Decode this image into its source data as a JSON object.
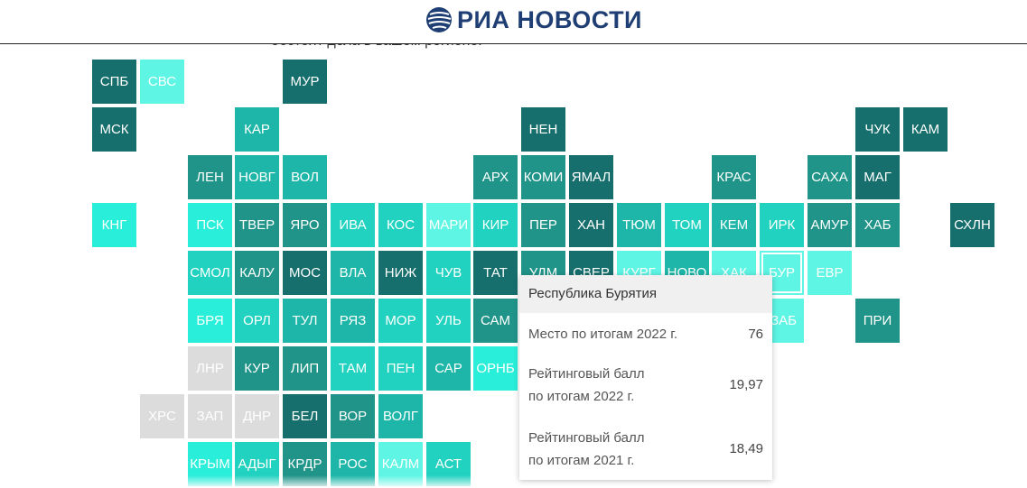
{
  "header": {
    "logo_text": "РИА НОВОСТИ"
  },
  "intro_text": "обстоят дела в вашем регионе.",
  "palette": {
    "c1": "#176f6d",
    "c2": "#209489",
    "c3": "#1db6a8",
    "c4": "#22d2c0",
    "c5": "#29eed9",
    "c6": "#5ef5e5",
    "none": "#dcdcdc"
  },
  "tiles": [
    {
      "label": "СПБ",
      "color": "#176f6d"
    },
    {
      "label": "СВС",
      "color": "#5ef5e5"
    },
    {
      "label": "МУР",
      "color": "#176f6d"
    },
    {
      "label": "МСК",
      "color": "#176f6d"
    },
    {
      "label": "КАР",
      "color": "#1db6a8"
    },
    {
      "label": "НЕН",
      "color": "#176f6d"
    },
    {
      "label": "ЧУК",
      "color": "#176f6d"
    },
    {
      "label": "КАМ",
      "color": "#176f6d"
    },
    {
      "label": "ЛЕН",
      "color": "#209489"
    },
    {
      "label": "НОВГ",
      "color": "#1db6a8"
    },
    {
      "label": "ВОЛ",
      "color": "#1db6a8"
    },
    {
      "label": "АРХ",
      "color": "#209489"
    },
    {
      "label": "КОМИ",
      "color": "#209489"
    },
    {
      "label": "ЯМАЛ",
      "color": "#176f6d"
    },
    {
      "label": "КРАС",
      "color": "#209489"
    },
    {
      "label": "САХА",
      "color": "#209489"
    },
    {
      "label": "МАГ",
      "color": "#176f6d"
    },
    {
      "label": "КНГ",
      "color": "#29eed9"
    },
    {
      "label": "ПСК",
      "color": "#29eed9"
    },
    {
      "label": "ТВЕР",
      "color": "#209489"
    },
    {
      "label": "ЯРО",
      "color": "#209489"
    },
    {
      "label": "ИВА",
      "color": "#22d2c0"
    },
    {
      "label": "КОС",
      "color": "#22d2c0"
    },
    {
      "label": "МАРИ",
      "color": "#5ef5e5"
    },
    {
      "label": "КИР",
      "color": "#22d2c0"
    },
    {
      "label": "ПЕР",
      "color": "#209489"
    },
    {
      "label": "ХАН",
      "color": "#176f6d"
    },
    {
      "label": "ТЮМ",
      "color": "#1db6a8"
    },
    {
      "label": "ТОМ",
      "color": "#22d2c0"
    },
    {
      "label": "КЕМ",
      "color": "#1db6a8"
    },
    {
      "label": "ИРК",
      "color": "#22d2c0"
    },
    {
      "label": "АМУР",
      "color": "#209489"
    },
    {
      "label": "ХАБ",
      "color": "#209489"
    },
    {
      "label": "СХЛН",
      "color": "#176f6d"
    },
    {
      "label": "СМОЛ",
      "color": "#22d2c0"
    },
    {
      "label": "КАЛУ",
      "color": "#209489"
    },
    {
      "label": "МОС",
      "color": "#176f6d"
    },
    {
      "label": "ВЛА",
      "color": "#1db6a8"
    },
    {
      "label": "НИЖ",
      "color": "#176f6d"
    },
    {
      "label": "ЧУВ",
      "color": "#22d2c0"
    },
    {
      "label": "ТАТ",
      "color": "#176f6d"
    },
    {
      "label": "УДМ",
      "color": "#209489"
    },
    {
      "label": "СВЕР",
      "color": "#176f6d"
    },
    {
      "label": "КУРГ",
      "color": "#5ef5e5"
    },
    {
      "label": "НОВО",
      "color": "#1db6a8"
    },
    {
      "label": "ХАК",
      "color": "#5ef5e5"
    },
    {
      "label": "БУР",
      "color": "#5ef5e5",
      "active": true
    },
    {
      "label": "ЕВР",
      "color": "#5ef5e5"
    },
    {
      "label": "БРЯ",
      "color": "#29eed9"
    },
    {
      "label": "ОРЛ",
      "color": "#22d2c0"
    },
    {
      "label": "ТУЛ",
      "color": "#1db6a8"
    },
    {
      "label": "РЯЗ",
      "color": "#1db6a8"
    },
    {
      "label": "МОР",
      "color": "#22d2c0"
    },
    {
      "label": "УЛЬ",
      "color": "#22d2c0"
    },
    {
      "label": "САМ",
      "color": "#209489"
    },
    {
      "label": "ЗАБ",
      "color": "#5ef5e5"
    },
    {
      "label": "ПРИ",
      "color": "#209489"
    },
    {
      "label": "ЛНР",
      "color": "#dcdcdc"
    },
    {
      "label": "КУР",
      "color": "#209489"
    },
    {
      "label": "ЛИП",
      "color": "#209489"
    },
    {
      "label": "ТАМ",
      "color": "#22d2c0"
    },
    {
      "label": "ПЕН",
      "color": "#22d2c0"
    },
    {
      "label": "САР",
      "color": "#1db6a8"
    },
    {
      "label": "ОРНБ",
      "color": "#29eed9"
    },
    {
      "label": "ХРС",
      "color": "#dcdcdc"
    },
    {
      "label": "ЗАП",
      "color": "#dcdcdc"
    },
    {
      "label": "ДНР",
      "color": "#dcdcdc"
    },
    {
      "label": "БЕЛ",
      "color": "#176f6d"
    },
    {
      "label": "ВОР",
      "color": "#209489"
    },
    {
      "label": "ВОЛГ",
      "color": "#1db6a8"
    },
    {
      "label": "КРЫМ",
      "color": "#29eed9"
    },
    {
      "label": "АДЫГ",
      "color": "#22d2c0"
    },
    {
      "label": "КРДР",
      "color": "#209489"
    },
    {
      "label": "РОС",
      "color": "#1db6a8"
    },
    {
      "label": "КАЛМ",
      "color": "#5ef5e5"
    },
    {
      "label": "АСТ",
      "color": "#22d2c0"
    }
  ],
  "tooltip": {
    "title": "Республика Бурятия",
    "rows": [
      {
        "label": "Место по итогам 2022 г.",
        "value": "76"
      },
      {
        "label": "Рейтинговый балл\nпо итогам 2022 г.",
        "value": "19,97"
      },
      {
        "label": "Рейтинговый балл\nпо итогам 2021 г.",
        "value": "18,49"
      }
    ]
  }
}
